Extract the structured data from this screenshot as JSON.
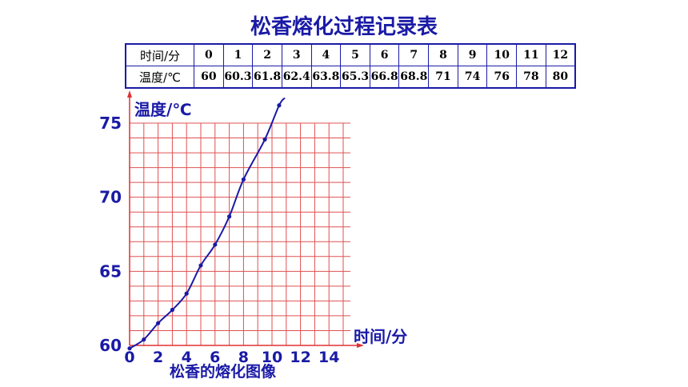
{
  "title": "松香熔化过程记录表",
  "table": {
    "row1_header": "时间/分",
    "row2_header": "温度/℃",
    "times": [
      "0",
      "1",
      "2",
      "3",
      "4",
      "5",
      "6",
      "7",
      "8",
      "9",
      "10",
      "11",
      "12"
    ],
    "temps": [
      "60",
      "60.3",
      "61.8",
      "62.4",
      "63.8",
      "65.3",
      "66.8",
      "68.8",
      "71",
      "74",
      "76",
      "78",
      "80"
    ]
  },
  "chart_data": {
    "type": "scatter",
    "ylabel": "温度/℃",
    "xlabel": "时间/分",
    "caption": "松香的熔化图像",
    "xlim": [
      0,
      15.5
    ],
    "ylim": [
      60,
      75
    ],
    "x_ticks": [
      "0",
      "2",
      "4",
      "6",
      "8",
      "10",
      "12",
      "14"
    ],
    "y_ticks": [
      "60",
      "65",
      "70",
      "75"
    ],
    "points": [
      {
        "x": 0,
        "y": 59.8
      },
      {
        "x": 1,
        "y": 60.4
      },
      {
        "x": 2,
        "y": 61.5
      },
      {
        "x": 3,
        "y": 62.4
      },
      {
        "x": 4,
        "y": 63.5
      },
      {
        "x": 5,
        "y": 65.4
      },
      {
        "x": 6,
        "y": 66.8
      },
      {
        "x": 7,
        "y": 68.7
      },
      {
        "x": 8,
        "y": 71.2
      },
      {
        "x": 9.5,
        "y": 73.9
      },
      {
        "x": 10.5,
        "y": 76.2
      }
    ],
    "curve_end": {
      "x": 10.9,
      "y": 76.7
    },
    "grid": true,
    "colors": {
      "grid": "#e05050",
      "axis": "#e03030",
      "curve": "#1a1aa6",
      "text": "#1a1aa6"
    }
  }
}
